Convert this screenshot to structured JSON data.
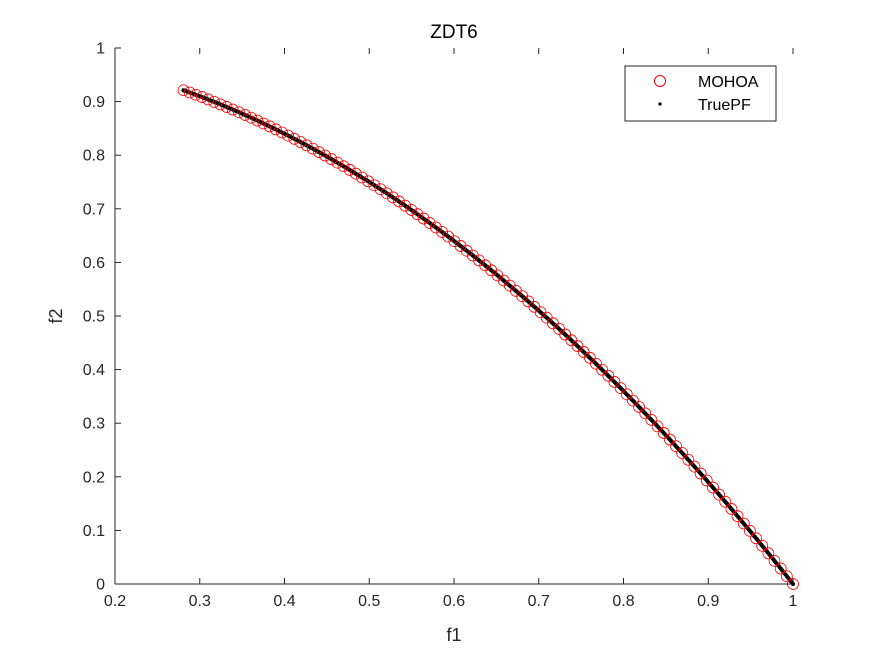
{
  "chart_data": {
    "type": "scatter",
    "title": "ZDT6",
    "xlabel": "f1",
    "ylabel": "f2",
    "xlim": [
      0.2,
      1
    ],
    "ylim": [
      0,
      1
    ],
    "xticks": [
      "0.2",
      "0.3",
      "0.4",
      "0.5",
      "0.6",
      "0.7",
      "0.8",
      "0.9",
      "1"
    ],
    "yticks": [
      "0",
      "0.1",
      "0.2",
      "0.3",
      "0.4",
      "0.5",
      "0.6",
      "0.7",
      "0.8",
      "0.9",
      "1"
    ],
    "grid": false,
    "legend_position": "top-right",
    "series": [
      {
        "name": "MOHOA",
        "marker": "open-circle",
        "color": "#ff0000",
        "x_range": [
          0.2808,
          1.0
        ],
        "relation": "f2 = 1 - f1^2",
        "points": 100
      },
      {
        "name": "TruePF",
        "marker": "dot",
        "color": "#000000",
        "x_range": [
          0.2808,
          1.0
        ],
        "relation": "f2 = 1 - f1^2",
        "points": 500
      }
    ]
  }
}
